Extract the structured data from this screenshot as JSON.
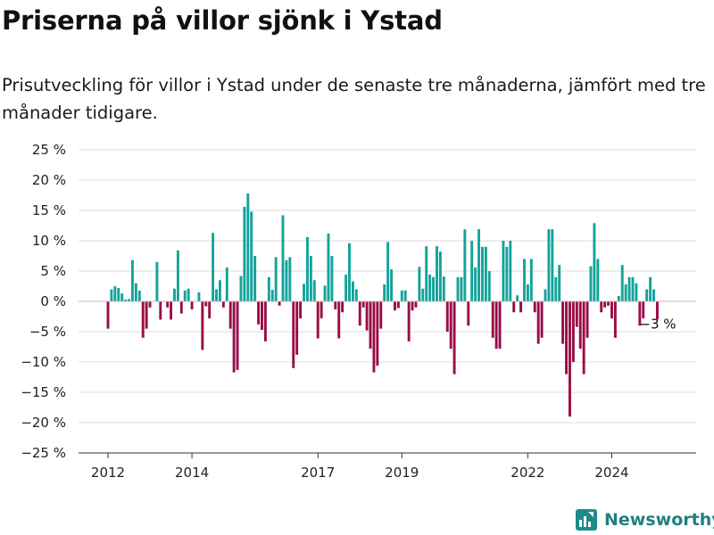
{
  "header": {
    "title": "Priserna på villor sjönk i Ystad",
    "subtitle": "Prisutveckling för villor i Ystad under de senaste tre månaderna, jämfört med tre månader tidigare."
  },
  "brand": {
    "name": "Newsworthy",
    "icon": "newsworthy-logo-icon"
  },
  "colors": {
    "positive": "#12a39b",
    "negative": "#990c47",
    "grid": "#dddddd",
    "axis": "#333333"
  },
  "chart_data": {
    "type": "bar",
    "ylim": [
      -25,
      25
    ],
    "yticks": [
      25,
      20,
      15,
      10,
      5,
      0,
      -5,
      -10,
      -15,
      -20,
      -25
    ],
    "ytick_labels": [
      "25 %",
      "20 %",
      "15 %",
      "10 %",
      "5 %",
      "0 %",
      "−5 %",
      "−10 %",
      "−15 %",
      "−20 %",
      "−25 %"
    ],
    "xtick_labels": [
      "2012",
      "2014",
      "2017",
      "2019",
      "2022",
      "2024"
    ],
    "grid": true,
    "start": "2012-01",
    "last_label": "−3 %",
    "values": [
      -4.5,
      2,
      2.5,
      2.2,
      1.3,
      0.3,
      0.4,
      6.8,
      3,
      1.8,
      -6,
      -4.5,
      -1,
      0,
      6.5,
      -3,
      0,
      -1,
      -3,
      2.1,
      8.4,
      -2,
      1.8,
      2.1,
      -1.3,
      0,
      1.5,
      -8,
      -0.8,
      -2.8,
      11.3,
      2,
      3.5,
      -1,
      5.6,
      -4.5,
      -11.7,
      -11.3,
      4.2,
      15.6,
      17.8,
      14.8,
      7.5,
      -3.8,
      -4.7,
      -6.6,
      4,
      1.9,
      7.3,
      -0.7,
      14.2,
      6.8,
      7.3,
      -11,
      -8.8,
      -2.8,
      2.9,
      10.6,
      7.5,
      3.5,
      -6.1,
      -2.8,
      2.6,
      11.2,
      7.5,
      -1.3,
      -6.1,
      -1.8,
      4.4,
      9.6,
      3.3,
      2,
      -4,
      -1,
      -4.8,
      -7.8,
      -11.7,
      -10.6,
      -4.5,
      2.8,
      9.8,
      5.3,
      -1.5,
      -1.1,
      1.8,
      1.8,
      -6.6,
      -1.5,
      -1,
      5.7,
      2.1,
      9.1,
      4.4,
      4,
      9.1,
      8.2,
      4.1,
      -5,
      -7.8,
      -12,
      4,
      4,
      11.9,
      -4,
      10,
      5.6,
      11.9,
      9,
      9,
      5,
      -6,
      -7.8,
      -7.8,
      10,
      9,
      10,
      -1.8,
      1,
      -1.8,
      7,
      2.8,
      7,
      -1.8,
      -7,
      -6,
      2,
      11.9,
      11.9,
      4,
      6,
      -7,
      -12,
      -19,
      -10,
      -4.2,
      -7.8,
      -12,
      -6,
      5.8,
      12.9,
      7,
      -1.8,
      -1,
      -0.7,
      -2.8,
      -6,
      0.9,
      6,
      2.8,
      4,
      4,
      3,
      -4,
      -2.8,
      2,
      4,
      2,
      -3
    ]
  }
}
